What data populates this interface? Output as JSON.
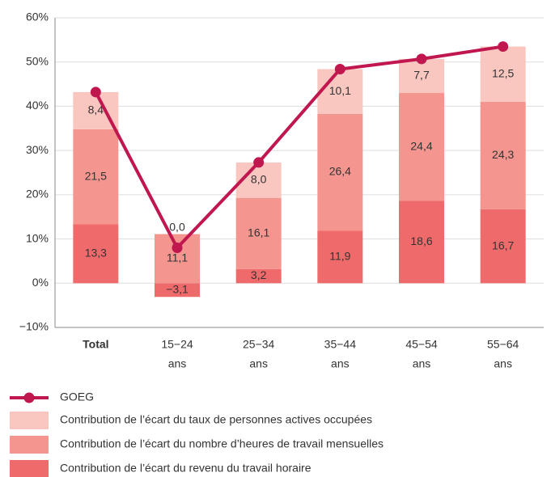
{
  "chart_data": {
    "type": "stacked_bar_line",
    "categories": [
      [
        "Total"
      ],
      [
        "15−24",
        "ans"
      ],
      [
        "25−34",
        "ans"
      ],
      [
        "35−44",
        "ans"
      ],
      [
        "45−54",
        "ans"
      ],
      [
        "55−64",
        "ans"
      ]
    ],
    "ylim": [
      -10,
      60
    ],
    "yticks": [
      {
        "value": -10,
        "label": "−10%"
      },
      {
        "value": 0,
        "label": "0%"
      },
      {
        "value": 10,
        "label": "10%"
      },
      {
        "value": 20,
        "label": "20%"
      },
      {
        "value": 30,
        "label": "30%"
      },
      {
        "value": 40,
        "label": "40%"
      },
      {
        "value": 50,
        "label": "50%"
      },
      {
        "value": 60,
        "label": "60%"
      }
    ],
    "grid": true,
    "series": [
      {
        "name": "Contribution de l’écart du revenu du travail horaire",
        "color": "#ef6b6b",
        "values": [
          13.3,
          -3.1,
          3.2,
          11.9,
          18.6,
          16.7
        ],
        "value_labels": [
          "13,3",
          "−3,1",
          "3,2",
          "11,9",
          "18,6",
          "16,7"
        ]
      },
      {
        "name": "Contribution de l’écart du nombre d’heures de travail mensuelles",
        "color": "#f4968f",
        "values": [
          21.5,
          11.1,
          16.1,
          26.4,
          24.4,
          24.3
        ],
        "value_labels": [
          "21,5",
          "11,1",
          "16,1",
          "26,4",
          "24,4",
          "24,3"
        ]
      },
      {
        "name": "Contribution de l’écart du taux de personnes actives occupées",
        "color": "#f9c6c0",
        "values": [
          8.4,
          0.0,
          8.0,
          10.1,
          7.7,
          12.5
        ],
        "value_labels": [
          "8,4",
          "0,0",
          "8,0",
          "10,1",
          "7,7",
          "12,5"
        ]
      }
    ],
    "line": {
      "name": "GOEG",
      "color": "#c0174f",
      "values": [
        43.2,
        8.0,
        27.3,
        48.4,
        50.7,
        53.5
      ]
    }
  }
}
